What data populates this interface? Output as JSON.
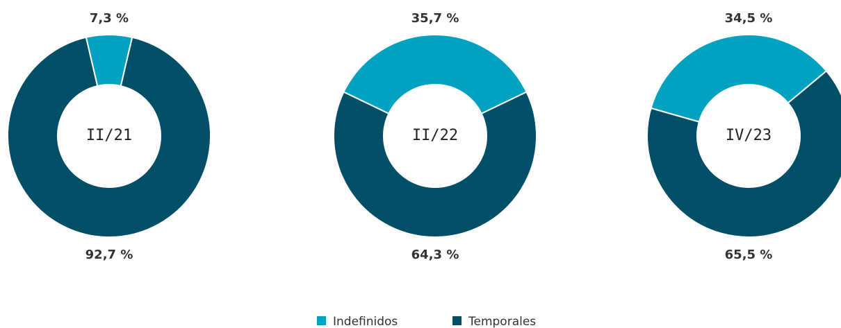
{
  "chart_data": [
    {
      "type": "pie",
      "title": "II/21",
      "categories": [
        "Indefinidos",
        "Temporales"
      ],
      "values": [
        7.3,
        92.7
      ],
      "value_labels": [
        "7,3 %",
        "92,7 %"
      ],
      "colors": [
        "#00a2bf",
        "#004f66"
      ]
    },
    {
      "type": "pie",
      "title": "II/22",
      "categories": [
        "Indefinidos",
        "Temporales"
      ],
      "values": [
        35.7,
        64.3
      ],
      "value_labels": [
        "35,7 %",
        "64,3 %"
      ],
      "colors": [
        "#00a2bf",
        "#004f66"
      ]
    },
    {
      "type": "pie",
      "title": "IV/23",
      "categories": [
        "Indefinidos",
        "Temporales"
      ],
      "values": [
        34.5,
        65.5
      ],
      "value_labels": [
        "34,5 %",
        "65,5 %"
      ],
      "colors": [
        "#00a2bf",
        "#004f66"
      ]
    }
  ]
}
